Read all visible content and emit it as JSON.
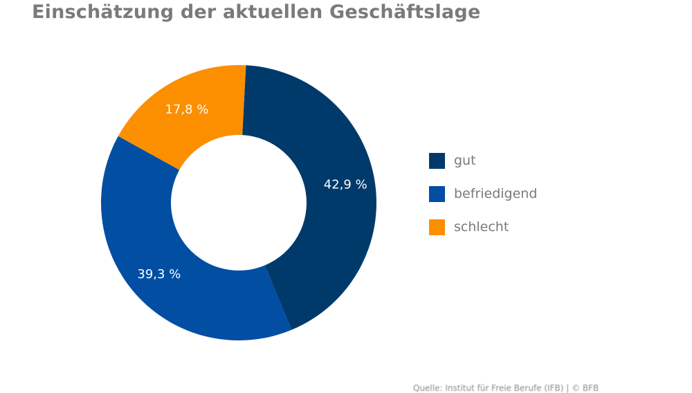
{
  "chart_data": {
    "type": "pie",
    "variant": "donut",
    "title": "Einschätzung der aktuellen Geschäftslage",
    "categories": [
      "gut",
      "befriedigend",
      "schlecht"
    ],
    "values": [
      42.9,
      39.3,
      17.8
    ],
    "labels": [
      "42,9 %",
      "39,3 %",
      "17,8 %"
    ],
    "colors": [
      "#003a6b",
      "#014ea3",
      "#fb8f00"
    ],
    "unit": "%",
    "legend_position": "right",
    "start_angle_deg": 3,
    "direction": "clockwise"
  },
  "legend": {
    "items": [
      {
        "label": "gut",
        "color": "#003a6b"
      },
      {
        "label": "befriedigend",
        "color": "#014ea3"
      },
      {
        "label": "schlecht",
        "color": "#fb8f00"
      }
    ]
  },
  "source": "Quelle: Institut für Freie Berufe (IFB) | © BFB"
}
